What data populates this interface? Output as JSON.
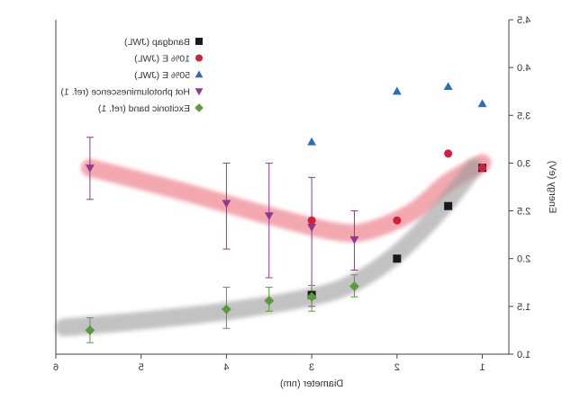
{
  "chart_data": {
    "type": "scatter",
    "x_axis": {
      "label": "Diameter (nm)",
      "range": [
        6,
        0.9
      ],
      "reversed": true,
      "ticks": [
        6,
        5,
        4,
        3,
        2,
        1
      ]
    },
    "y_axis": {
      "label": "Energy (eV)",
      "side": "right",
      "range": [
        1.0,
        4.5
      ],
      "ticks": [
        "1.0",
        "1.5",
        "2.0",
        "2.5",
        "3.0",
        "3.5",
        "4.0",
        "4.5"
      ]
    },
    "mirrored": true,
    "grid": false,
    "legend_position": "top-left",
    "series": [
      {
        "name": "Bandgap (JWL)",
        "marker": "square",
        "color": "#1a1a1a",
        "points": [
          [
            3.0,
            1.62
          ],
          [
            2.0,
            2.0
          ],
          [
            1.4,
            2.55
          ],
          [
            1.0,
            2.95
          ]
        ]
      },
      {
        "name": "10% E (JWL)",
        "marker": "circle",
        "color": "#d0203a",
        "points": [
          [
            3.0,
            2.4
          ],
          [
            2.0,
            2.4
          ],
          [
            1.4,
            3.1
          ],
          [
            1.0,
            2.95
          ]
        ]
      },
      {
        "name": "50% E (JWL)",
        "marker": "triangle-up",
        "color": "#2e6db5",
        "points": [
          [
            3.0,
            3.22
          ],
          [
            2.0,
            3.75
          ],
          [
            1.4,
            3.8
          ],
          [
            1.0,
            3.62
          ]
        ]
      },
      {
        "name": "Hot photoluminescence (ref. 1)",
        "marker": "triangle-down",
        "color": "#8e3a8e",
        "points": [
          {
            "x": 5.6,
            "y": 2.95,
            "err": [
              2.62,
              3.27
            ]
          },
          {
            "x": 4.0,
            "y": 2.58,
            "err": [
              2.1,
              3.0
            ]
          },
          {
            "x": 3.5,
            "y": 2.45,
            "err": [
              1.8,
              3.0
            ]
          },
          {
            "x": 3.0,
            "y": 2.33,
            "err": [
              1.5,
              2.85
            ]
          },
          {
            "x": 2.5,
            "y": 2.2,
            "err": [
              1.88,
              2.5
            ]
          }
        ]
      },
      {
        "name": "Excitonic band (ref. 1)",
        "marker": "diamond",
        "color": "#5a9a3c",
        "points": [
          {
            "x": 5.6,
            "y": 1.25,
            "err": [
              1.12,
              1.38
            ]
          },
          {
            "x": 4.0,
            "y": 1.47,
            "err": [
              1.27,
              1.7
            ]
          },
          {
            "x": 3.5,
            "y": 1.56,
            "err": [
              1.45,
              1.7
            ]
          },
          {
            "x": 3.0,
            "y": 1.6,
            "err": [
              1.45,
              1.72
            ]
          },
          {
            "x": 2.5,
            "y": 1.71,
            "err": [
              1.6,
              1.83
            ]
          }
        ]
      }
    ],
    "trend_bands": [
      {
        "color": "#f08b96",
        "points": [
          [
            5.6,
            2.95
          ],
          [
            4.5,
            2.7
          ],
          [
            3.5,
            2.45
          ],
          [
            2.7,
            2.28
          ],
          [
            2.3,
            2.3
          ],
          [
            1.8,
            2.5
          ],
          [
            1.4,
            2.8
          ],
          [
            1.0,
            3.0
          ]
        ]
      },
      {
        "color": "#9a9a9a",
        "points": [
          [
            5.9,
            1.28
          ],
          [
            5.0,
            1.35
          ],
          [
            4.0,
            1.45
          ],
          [
            3.0,
            1.6
          ],
          [
            2.5,
            1.75
          ],
          [
            2.0,
            2.05
          ],
          [
            1.5,
            2.5
          ],
          [
            1.1,
            2.95
          ]
        ]
      }
    ]
  }
}
